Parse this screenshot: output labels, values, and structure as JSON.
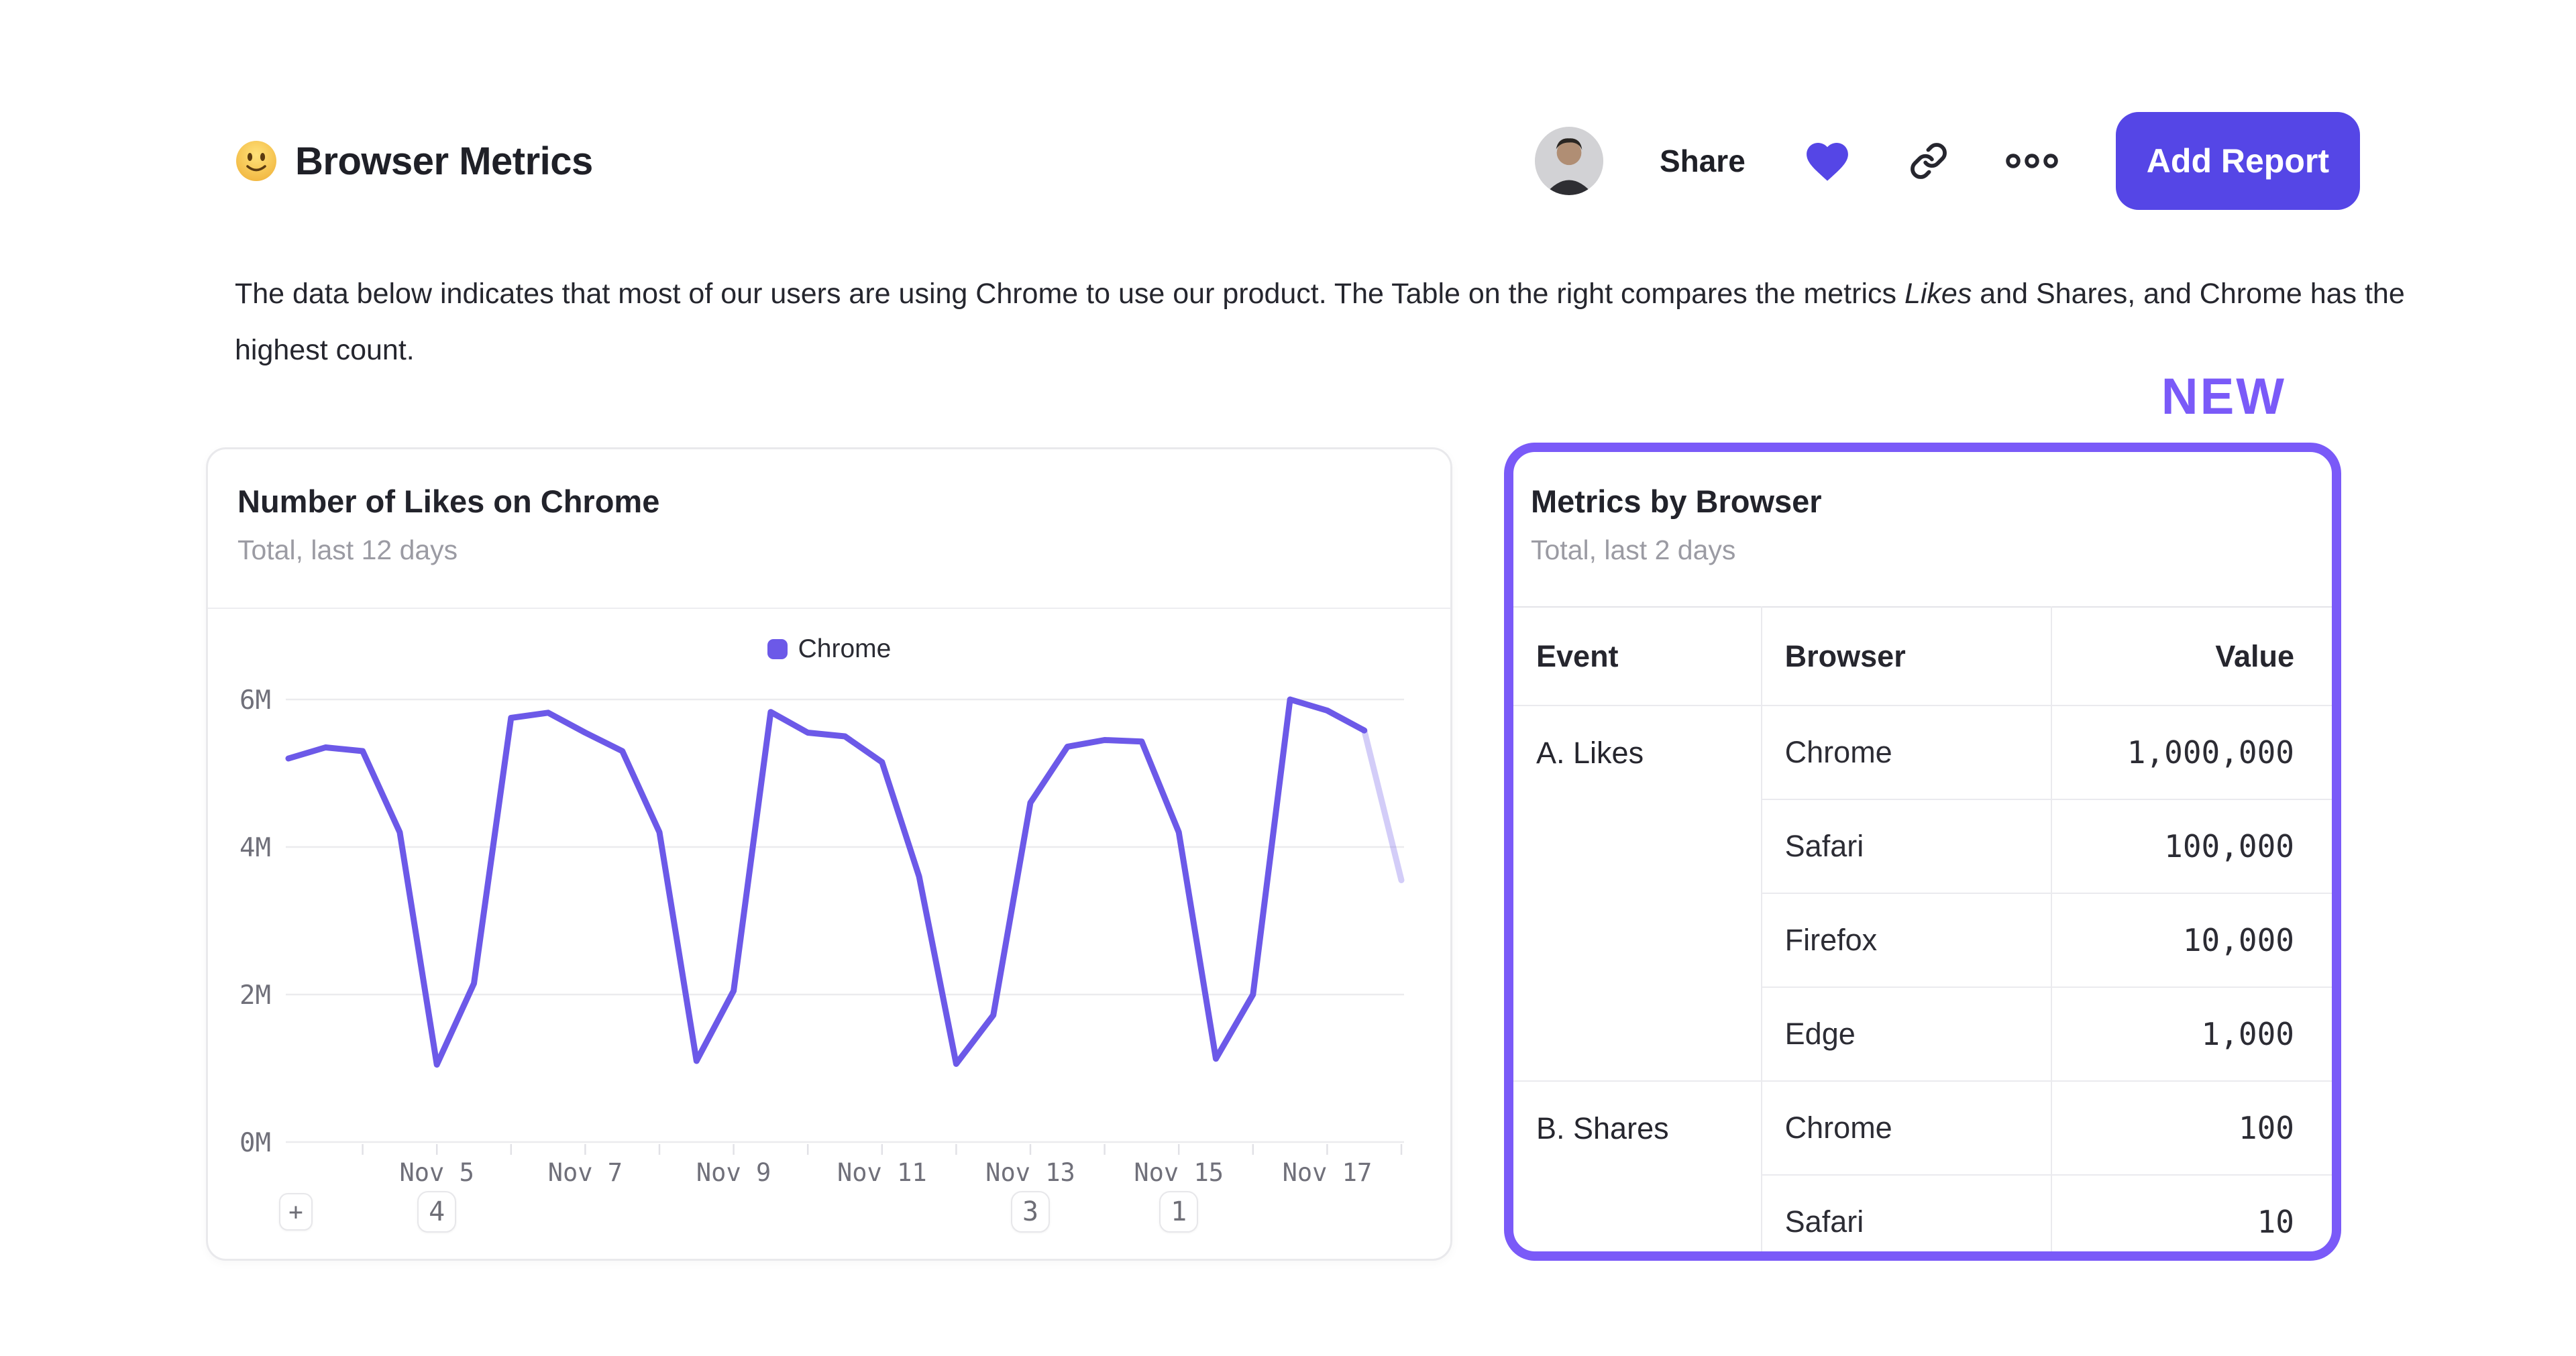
{
  "header": {
    "emoji": "slightly-smiling-face",
    "title": "Browser Metrics",
    "share_label": "Share",
    "add_report_label": "Add Report"
  },
  "description": {
    "text_before_italic": "The data below indicates that most of our users are using Chrome to use our product. The Table on the right compares the metrics ",
    "italic_word": "Likes",
    "text_after_italic": " and Shares, and Chrome has the highest count."
  },
  "new_badge_label": "NEW",
  "chart_card": {
    "title": "Number of Likes on Chrome",
    "subtitle": "Total, last 12 days",
    "legend": [
      {
        "name": "Chrome",
        "color": "#6c59e8"
      }
    ],
    "add_annotation_label": "+",
    "annotation_badges": [
      {
        "label": "4",
        "at_index": 4
      },
      {
        "label": "3",
        "at_index": 20
      },
      {
        "label": "1",
        "at_index": 24
      }
    ]
  },
  "chart_data": {
    "type": "line",
    "title": "Number of Likes on Chrome",
    "unit": "M",
    "ylim": [
      0,
      6.3
    ],
    "grid": "horizontal",
    "legend_position": "top-center",
    "y_ticks": [
      {
        "value": 0,
        "label": "0M"
      },
      {
        "value": 2,
        "label": "2M"
      },
      {
        "value": 4,
        "label": "4M"
      },
      {
        "value": 6,
        "label": "6M"
      }
    ],
    "x_ticks": [
      {
        "index": 2,
        "label": ""
      },
      {
        "index": 4,
        "label": "Nov 5"
      },
      {
        "index": 6,
        "label": ""
      },
      {
        "index": 8,
        "label": "Nov 7"
      },
      {
        "index": 10,
        "label": ""
      },
      {
        "index": 12,
        "label": "Nov 9"
      },
      {
        "index": 14,
        "label": ""
      },
      {
        "index": 16,
        "label": "Nov 11"
      },
      {
        "index": 18,
        "label": ""
      },
      {
        "index": 20,
        "label": "Nov 13"
      },
      {
        "index": 22,
        "label": ""
      },
      {
        "index": 24,
        "label": "Nov 15"
      },
      {
        "index": 26,
        "label": ""
      },
      {
        "index": 28,
        "label": "Nov 17"
      },
      {
        "index": 30,
        "label": ""
      }
    ],
    "points_per_day": 2,
    "series": [
      {
        "name": "Chrome",
        "color": "#6c59e8",
        "values": [
          5.2,
          5.35,
          5.3,
          4.2,
          1.05,
          2.15,
          5.75,
          5.82,
          5.55,
          5.3,
          4.2,
          1.1,
          2.05,
          5.83,
          5.55,
          5.5,
          5.15,
          3.6,
          1.06,
          1.72,
          4.6,
          5.36,
          5.45,
          5.43,
          4.2,
          1.13,
          2.0,
          6.0,
          5.85,
          5.58,
          3.55
        ],
        "faded_tail_segments": 1
      }
    ]
  },
  "table_card": {
    "title": "Metrics by Browser",
    "subtitle": "Total, last 2 days",
    "columns": [
      "Event",
      "Browser",
      "Value"
    ],
    "groups": [
      {
        "event": "A. Likes",
        "rows": [
          {
            "browser": "Chrome",
            "value": "1,000,000"
          },
          {
            "browser": "Safari",
            "value": "100,000"
          },
          {
            "browser": "Firefox",
            "value": "10,000"
          },
          {
            "browser": "Edge",
            "value": "1,000"
          }
        ]
      },
      {
        "event": "B. Shares",
        "rows": [
          {
            "browser": "Chrome",
            "value": "100"
          },
          {
            "browser": "Safari",
            "value": "10"
          }
        ]
      }
    ]
  },
  "colors": {
    "accent_indigo": "#5546e6",
    "accent_purple": "#7a5af8",
    "line": "#6c59e8",
    "grid": "#ebebee",
    "axis_text": "#70707a",
    "text_dark": "#26262e",
    "text_gray": "#9b9ba3"
  }
}
